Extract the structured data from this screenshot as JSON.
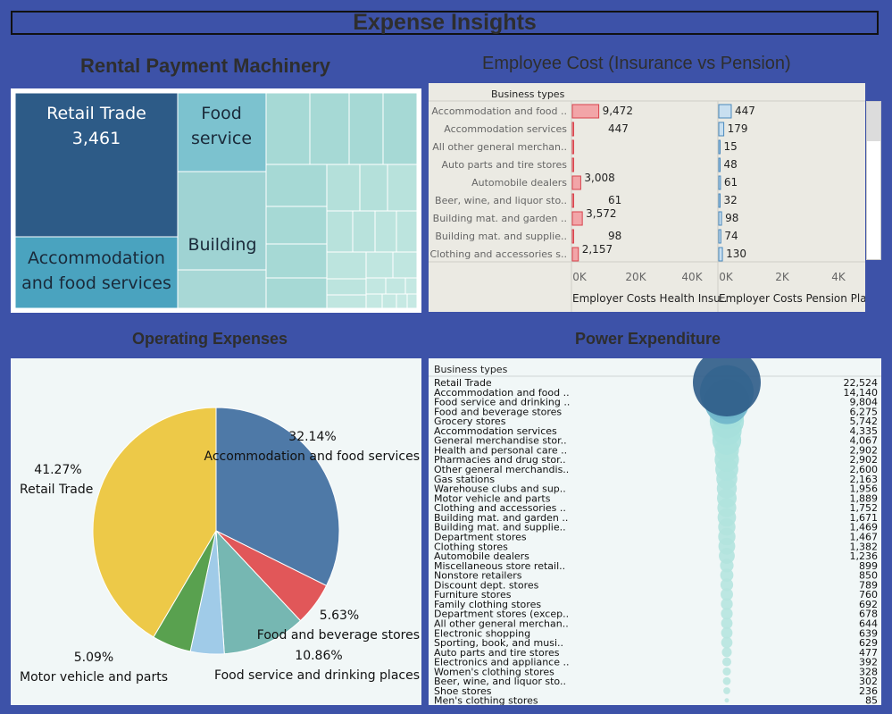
{
  "header": {
    "title": "Expense Insights"
  },
  "rental": {
    "title": "Rental Payment Machinery",
    "chart_data": {
      "type": "treemap",
      "items": [
        {
          "label": "Retail Trade",
          "value_label": "3,461",
          "color": "#2d5b87"
        },
        {
          "label": "Accommodation and food services",
          "color": "#4aa3bf"
        },
        {
          "label": "Food service",
          "color": "#7cc2cf"
        },
        {
          "label": "Building",
          "color": "#9fd3d3"
        }
      ]
    }
  },
  "employee": {
    "title": "Employee  Cost (Insurance vs  Pension)",
    "chart_data": {
      "type": "bar",
      "row_header": "Business types",
      "categories": [
        "Accommodation and food ..",
        "Accommodation services",
        "All other general merchan..",
        "Auto parts and tire stores",
        "Automobile dealers",
        "Beer, wine, and liquor sto..",
        "Building mat. and garden ..",
        "Building mat. and supplie..",
        "Clothing and accessories s.."
      ],
      "series": [
        {
          "name": "Employer Costs Health Insu..",
          "labels": [
            "9,472",
            "447",
            "",
            "",
            "3,008",
            "61",
            "3,572",
            "98",
            "2,157"
          ],
          "values": [
            9472,
            447,
            0,
            0,
            3008,
            61,
            3572,
            98,
            2157
          ],
          "color": "#f2a5a8",
          "stroke": "#d9434d",
          "ticks": [
            "0K",
            "20K",
            "40K"
          ],
          "xlim": [
            0,
            48000
          ]
        },
        {
          "name": "Employer Costs Pension Pla..",
          "labels": [
            "447",
            "179",
            "15",
            "48",
            "61",
            "32",
            "98",
            "74",
            "130"
          ],
          "values": [
            447,
            179,
            15,
            48,
            61,
            32,
            98,
            74,
            130
          ],
          "color": "#c8dff0",
          "stroke": "#4a89bd",
          "ticks": [
            "0K",
            "2K",
            "4K"
          ],
          "xlim": [
            0,
            4800
          ]
        }
      ],
      "overflow_label": "130"
    }
  },
  "operating": {
    "title": "Operating Expenses",
    "chart_data": {
      "type": "pie",
      "slices": [
        {
          "label": "Accommodation and food services",
          "pct_label": "32.14%",
          "value": 32.14,
          "color": "#4e79a7"
        },
        {
          "label": "Food and beverage stores",
          "pct_label": "5.63%",
          "value": 5.63,
          "color": "#e15759"
        },
        {
          "label": "Food service and drinking places",
          "pct_label": "10.86%",
          "value": 10.86,
          "color": "#76b7b2"
        },
        {
          "label": "",
          "pct_label": "",
          "value": 4.4,
          "color": "#a0cbe8"
        },
        {
          "label": "Motor vehicle and parts",
          "pct_label": "5.09%",
          "value": 5.09,
          "color": "#59a14f"
        },
        {
          "label": "Retail Trade",
          "pct_label": "41.27%",
          "value": 41.27,
          "color": "#edc948"
        }
      ]
    }
  },
  "power": {
    "title": "Power Expenditure",
    "chart_data": {
      "type": "scatter",
      "row_header": "Business types",
      "categories": [
        "Retail Trade",
        "Accommodation and food ..",
        "Food service and drinking ..",
        "Food and beverage stores",
        "Grocery stores",
        "Accommodation services",
        "General merchandise stor..",
        "Health and personal care ..",
        "Pharmacies and drug stor..",
        "Other general merchandis..",
        "Gas stations",
        "Warehouse clubs and sup..",
        "Motor vehicle and parts",
        "Clothing and accessories ..",
        "Building mat. and garden ..",
        "Building mat. and supplie..",
        "Department stores",
        "Clothing stores",
        "Automobile dealers",
        "Miscellaneous store retail..",
        "Nonstore retailers",
        "Discount dept. stores",
        "Furniture stores",
        "Family clothing stores",
        "Department stores (excep..",
        "All other general merchan..",
        "Electronic shopping",
        "Sporting, book, and  musi..",
        "Auto parts and tire stores",
        "Electronics and appliance ..",
        "Women's clothing stores",
        "Beer, wine, and liquor sto..",
        "Shoe stores",
        "Men's clothing stores"
      ],
      "labels": [
        "22,524",
        "14,140",
        "9,804",
        "6,275",
        "5,742",
        "4,335",
        "4,067",
        "2,902",
        "2,902",
        "2,600",
        "2,163",
        "1,956",
        "1,889",
        "1,752",
        "1,671",
        "1,469",
        "1,467",
        "1,382",
        "1,236",
        "899",
        "850",
        "789",
        "760",
        "692",
        "678",
        "644",
        "639",
        "629",
        "477",
        "392",
        "328",
        "302",
        "236",
        "85"
      ],
      "values": [
        22524,
        14140,
        9804,
        6275,
        5742,
        4335,
        4067,
        2902,
        2902,
        2600,
        2163,
        1956,
        1889,
        1752,
        1671,
        1469,
        1467,
        1382,
        1236,
        899,
        850,
        789,
        760,
        692,
        678,
        644,
        639,
        629,
        477,
        392,
        328,
        302,
        236,
        85
      ],
      "color_dark": "#2d5b87",
      "color_light": "#bfe6e0"
    }
  }
}
